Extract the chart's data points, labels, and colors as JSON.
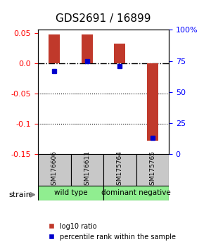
{
  "title": "GDS2691 / 16899",
  "samples": [
    "GSM176606",
    "GSM176611",
    "GSM175764",
    "GSM175765"
  ],
  "log10_ratio": [
    0.048,
    0.048,
    0.032,
    -0.128
  ],
  "percentile_rank": [
    67,
    75,
    71,
    13
  ],
  "groups": [
    {
      "label": "wild type",
      "samples": [
        0,
        1
      ],
      "color": "#90ee90"
    },
    {
      "label": "dominant negative",
      "samples": [
        2,
        3
      ],
      "color": "#90ee90"
    }
  ],
  "ylim_left": [
    -0.15,
    0.055
  ],
  "ylim_right": [
    0,
    100
  ],
  "left_ticks": [
    0.05,
    0.0,
    -0.05,
    -0.1,
    -0.15
  ],
  "right_ticks": [
    100,
    75,
    50,
    25,
    0
  ],
  "bar_color": "#c0392b",
  "dot_color": "#0000cc",
  "background_color": "#ffffff",
  "strain_label": "strain",
  "legend_bar_label": "log10 ratio",
  "legend_dot_label": "percentile rank within the sample"
}
